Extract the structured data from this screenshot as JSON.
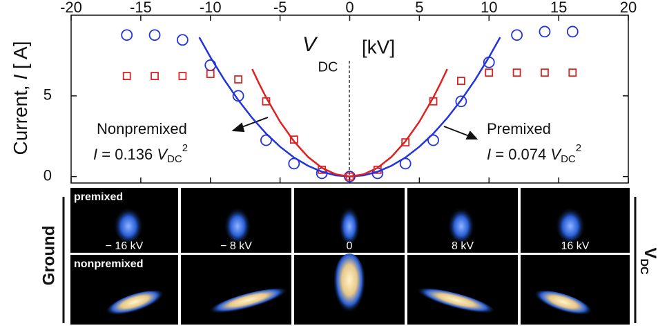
{
  "chart_data": {
    "type": "scatter",
    "y_label": {
      "text": "Current,",
      "var": "I",
      "unit": "[ A]"
    },
    "xlim": [
      -20,
      20
    ],
    "xticks": [
      -20,
      -15,
      -10,
      -5,
      0,
      5,
      10,
      15,
      20
    ],
    "ylim": [
      -0.4,
      10
    ],
    "yticks": [
      0,
      5
    ],
    "center_label": {
      "var": "V",
      "sub": "DC",
      "unit": "[kV]"
    },
    "series": [
      {
        "mode": "markers",
        "marker": "circle",
        "color": "#2233dd",
        "x": [
          -16,
          -14,
          -12,
          -10,
          -8,
          -6,
          -4,
          -2,
          0,
          2,
          4,
          6,
          8,
          10,
          12,
          14,
          16
        ],
        "values": [
          8.77,
          8.77,
          8.47,
          6.9,
          5.0,
          2.25,
          0.8,
          0.2,
          0,
          0.2,
          0.8,
          2.25,
          4.66,
          7.08,
          8.77,
          8.98,
          8.98
        ]
      },
      {
        "mode": "markers",
        "marker": "square",
        "color": "#dd2222",
        "x": [
          -16,
          -14,
          -12,
          -10,
          -8,
          -6,
          -4,
          -2,
          0,
          2,
          4,
          6,
          8,
          10,
          12,
          14,
          16
        ],
        "values": [
          6.23,
          6.23,
          6.23,
          6.36,
          6.02,
          4.66,
          2.29,
          0.42,
          0,
          0.42,
          2.12,
          4.66,
          5.93,
          6.44,
          6.44,
          6.44,
          6.44
        ]
      },
      {
        "mode": "line",
        "color": "#2233dd",
        "x": [
          -10.8,
          -10,
          -9,
          -8,
          -7,
          -6,
          -5,
          -4,
          -3,
          -2,
          -1,
          0,
          1,
          2,
          3,
          4,
          5,
          6,
          7,
          8,
          9,
          10,
          10.8
        ],
        "values": [
          8.63,
          7.4,
          5.99,
          4.74,
          3.63,
          2.66,
          1.85,
          1.18,
          0.67,
          0.3,
          0.07,
          0,
          0.07,
          0.3,
          0.67,
          1.18,
          1.85,
          2.66,
          3.63,
          4.74,
          5.99,
          7.4,
          8.63
        ]
      },
      {
        "mode": "line",
        "color": "#dd2222",
        "x": [
          -7,
          -6.5,
          -6,
          -5,
          -4,
          -3,
          -2,
          -1,
          0,
          1,
          2,
          3,
          4,
          5,
          6,
          6.5,
          7
        ],
        "values": [
          6.66,
          5.75,
          4.9,
          3.4,
          2.18,
          1.22,
          0.54,
          0.14,
          0,
          0.14,
          0.54,
          1.22,
          2.18,
          3.4,
          4.9,
          5.75,
          6.66
        ]
      }
    ],
    "annotations": [
      {
        "text": "Nonpremixed",
        "var": "I",
        "eq": "= 0.136",
        "v": "V",
        "sub": "DC",
        "sup": "2"
      },
      {
        "text": "Premixed",
        "var": "I",
        "eq": "= 0.074",
        "v": "V",
        "sub": "DC",
        "sup": "2"
      }
    ]
  },
  "photos": {
    "columns": [
      "− 16 kV",
      "− 8 kV",
      "0",
      "8 kV",
      "16 kV"
    ],
    "rows": [
      "premixed",
      "nonpremixed"
    ],
    "left_label": "Ground",
    "right_label": {
      "var": "V",
      "sub": "DC"
    }
  }
}
